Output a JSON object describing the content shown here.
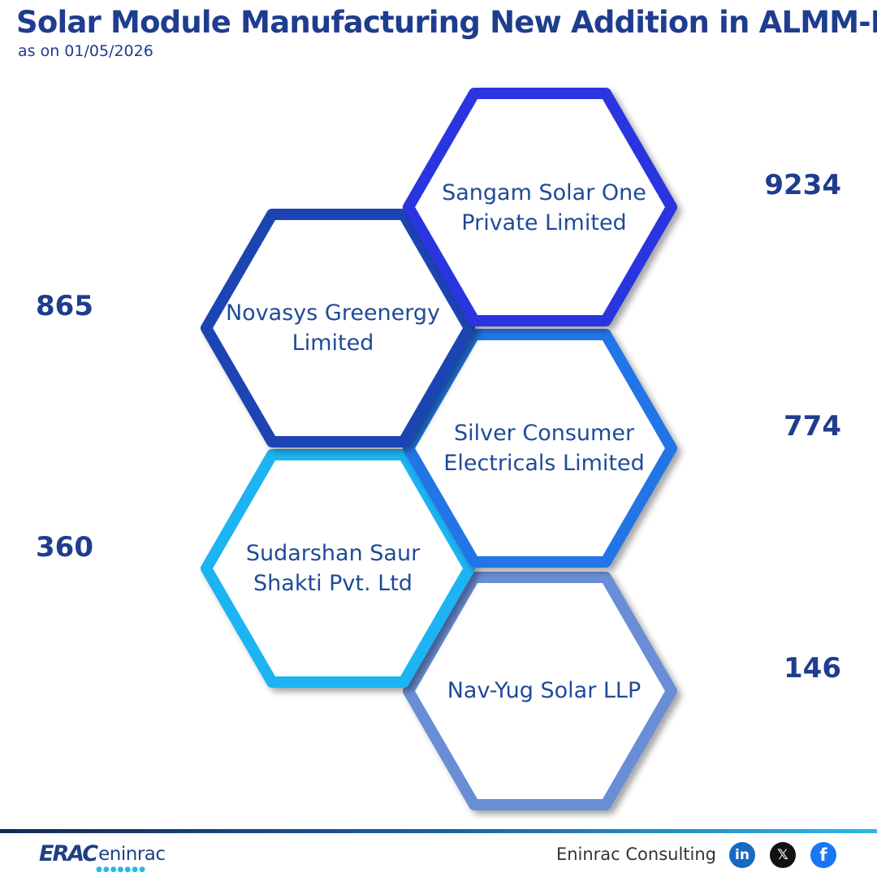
{
  "header": {
    "title": "Solar Module Manufacturing New Addition in ALMM-I",
    "subtitle": "as on 01/05/2026"
  },
  "entries": [
    {
      "company_line1": "Sangam Solar One",
      "company_line2": "Private Limited",
      "value": "9234",
      "color": "#2b36e0",
      "side": "right"
    },
    {
      "company_line1": "Novasys Greenergy",
      "company_line2": "Limited",
      "value": "865",
      "color": "#1a44b3",
      "side": "left"
    },
    {
      "company_line1": "Silver Consumer",
      "company_line2": "Electricals Limited",
      "value": "774",
      "color": "#2375e6",
      "side": "right"
    },
    {
      "company_line1": "Sudarshan Saur",
      "company_line2": "Shakti Pvt. Ltd",
      "value": "360",
      "color": "#1ab4f3",
      "side": "left"
    },
    {
      "company_line1": "Nav-Yug Solar LLP",
      "company_line2": "",
      "value": "146",
      "color": "#6a8ed6",
      "side": "right"
    }
  ],
  "footer": {
    "logo_mark": "ERAC",
    "logo_text": "eninrac",
    "brand": "Eninrac Consulting",
    "social": [
      {
        "name": "linkedin-icon",
        "glyph": "in"
      },
      {
        "name": "x-icon",
        "glyph": "𝕏"
      },
      {
        "name": "facebook-icon",
        "glyph": "f"
      }
    ]
  }
}
